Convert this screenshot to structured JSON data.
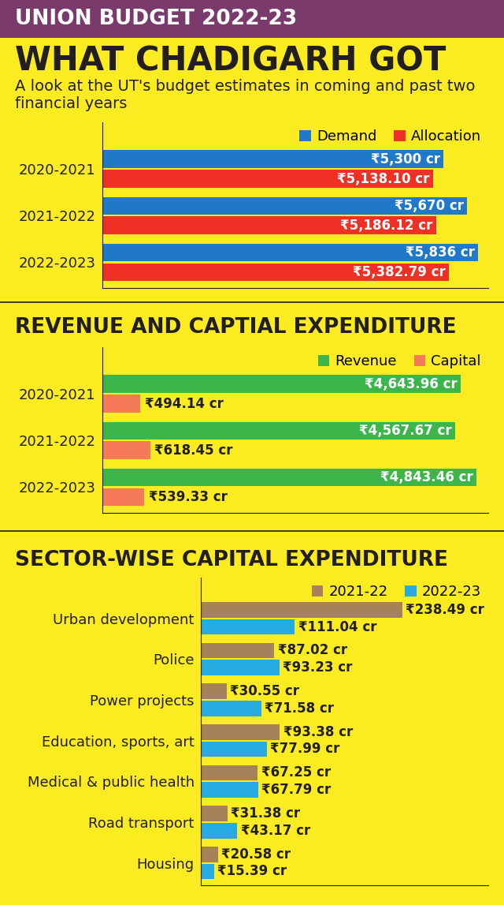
{
  "header": {
    "banner": "UNION BUDGET 2022-23",
    "title": "WHAT CHADIGARH GOT",
    "subtitle": "A look at the UT's budget estimates in coming and past two financial years"
  },
  "chart_data": [
    {
      "type": "bar",
      "orientation": "horizontal",
      "categories": [
        "2020-2021",
        "2021-2022",
        "2022-2023"
      ],
      "series": [
        {
          "name": "Demand",
          "color": "#1f78c8",
          "values": [
            5300,
            5670,
            5836
          ],
          "value_labels": [
            "₹5,300 cr",
            "₹5,670 cr",
            "₹5,836 cr"
          ]
        },
        {
          "name": "Allocation",
          "color": "#ee3124",
          "values": [
            5138.1,
            5186.12,
            5382.79
          ],
          "value_labels": [
            "₹5,138.10 cr",
            "₹5,186.12 cr",
            "₹5,382.79 cr"
          ]
        }
      ],
      "xlim": [
        0,
        6000
      ],
      "xticks": [],
      "tick_labels": "y",
      "data_labels": true,
      "legend": "upper right",
      "grid": false
    },
    {
      "type": "bar",
      "orientation": "horizontal",
      "title": "REVENUE AND CAPTIAL EXPENDITURE",
      "categories": [
        "2020-2021",
        "2021-2022",
        "2022-2023"
      ],
      "series": [
        {
          "name": "Revenue",
          "color": "#3cb54a",
          "values": [
            4643.96,
            4567.67,
            4843.46
          ],
          "value_labels": [
            "₹4,643.96 cr",
            "₹4,567.67 cr",
            "₹4,843.46 cr"
          ]
        },
        {
          "name": "Capital",
          "color": "#f47a5a",
          "values": [
            494.14,
            618.45,
            539.33
          ],
          "value_labels": [
            "₹494.14 cr",
            "₹618.45 cr",
            "₹539.33 cr"
          ]
        }
      ],
      "xlim": [
        0,
        5000
      ],
      "xticks": [],
      "tick_labels": "y",
      "data_labels": true,
      "legend": "upper right",
      "grid": false
    },
    {
      "type": "bar",
      "orientation": "horizontal",
      "title": "SECTOR-WISE CAPITAL EXPENDITURE",
      "categories": [
        "Urban development",
        "Police",
        "Power projects",
        "Education, sports, art",
        "Medical & public health",
        "Road transport",
        "Housing"
      ],
      "series": [
        {
          "name": "2021-22",
          "color": "#a6825a",
          "values": [
            238.49,
            87.02,
            30.55,
            93.38,
            67.25,
            31.38,
            20.58
          ],
          "value_labels": [
            "₹238.49 cr",
            "₹87.02 cr",
            "₹30.55 cr",
            "₹93.38 cr",
            "₹67.25 cr",
            "₹31.38 cr",
            "₹20.58 cr"
          ]
        },
        {
          "name": "2022-23",
          "color": "#27aae1",
          "values": [
            111.04,
            93.23,
            71.58,
            77.99,
            67.79,
            43.17,
            15.39
          ],
          "value_labels": [
            "₹111.04 cr",
            "₹93.23 cr",
            "₹71.58 cr",
            "₹77.99 cr",
            "₹67.79 cr",
            "₹43.17 cr",
            "₹15.39 cr"
          ]
        }
      ],
      "xlim": [
        0,
        340
      ],
      "xticks": [],
      "tick_labels": "y",
      "data_labels": true,
      "legend": "upper right",
      "grid": false
    }
  ]
}
